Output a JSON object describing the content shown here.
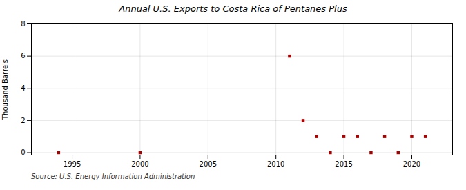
{
  "chart_data": {
    "type": "scatter",
    "title": "Annual U.S. Exports to Costa Rica of Pentanes Plus",
    "ylabel": "Thousand Barrels",
    "source": "Source: U.S. Energy Information Administration",
    "x": [
      1994,
      2000,
      2011,
      2012,
      2013,
      2014,
      2015,
      2016,
      2017,
      2018,
      2019,
      2020,
      2021
    ],
    "values": [
      0,
      0,
      6,
      2,
      1,
      0,
      1,
      1,
      0,
      1,
      0,
      1,
      1
    ],
    "color": "#aa0000",
    "marker": "square",
    "xlim": [
      1992,
      2023
    ],
    "ylim": [
      -0.15,
      8
    ],
    "xticks": [
      1995,
      2000,
      2005,
      2010,
      2015,
      2020
    ],
    "yticks": [
      0,
      2,
      4,
      6,
      8
    ],
    "grid": true
  }
}
